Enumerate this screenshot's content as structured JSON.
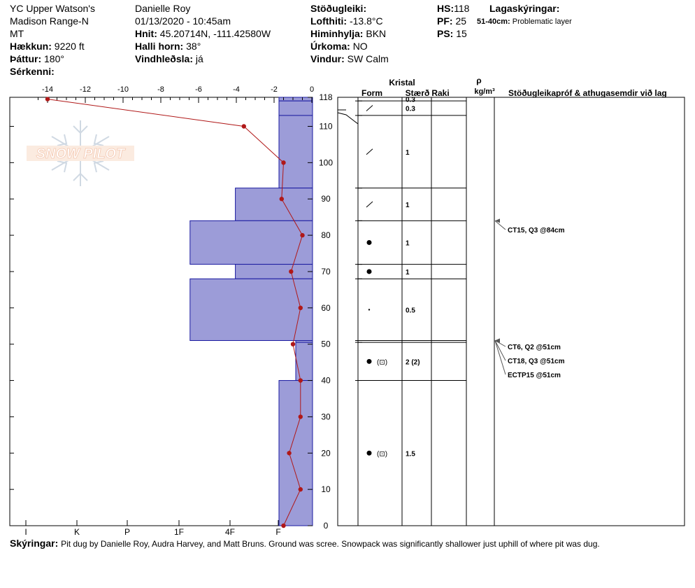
{
  "header": {
    "location_line1": "YC Upper Watson's",
    "location_line2": "Madison Range-N",
    "state": "MT",
    "elevation_label": "Hækkun:",
    "elevation_value": "9220 ft",
    "aspect_label": "Þáttur:",
    "aspect_value": "180°",
    "specifics_label": "Sérkenni:",
    "observer": "Danielle Roy",
    "datetime": "01/13/2020 - 10:45am",
    "coords_label": "Hnit:",
    "coords_value": "45.20714N, -111.42580W",
    "slope_label": "Halli horn:",
    "slope_value": "38°",
    "wind_loading_label": "Vindhleðsla:",
    "wind_loading_value": "já",
    "stability_label": "Stöðugleiki:",
    "air_temp_label": "Lofthiti:",
    "air_temp_value": "-13.8°C",
    "sky_label": "Himinhylja:",
    "sky_value": "BKN",
    "precip_label": "Úrkoma:",
    "precip_value": "NO",
    "wind_label": "Vindur:",
    "wind_value": "SW Calm",
    "hs_label": "HS:",
    "hs_value": "118",
    "pf_label": "PF:",
    "pf_value": "25",
    "ps_label": "PS:",
    "ps_value": "15",
    "layer_notes_label": "Lagaskýringar:",
    "layer_note_range": "51-40cm:",
    "layer_note_text": "Problematic layer"
  },
  "table_headers": {
    "crystal": "Kristal",
    "form": "Form",
    "size": "Stærð",
    "moisture": "Raki",
    "rho": "ρ",
    "density_unit": "kg/m³",
    "tests": "Stöðugleikapróf & athugasemdir við lag"
  },
  "watermark": "SNOW PILOT",
  "footer": {
    "label": "Skýringar:",
    "text": "Pit dug by Danielle Roy, Audra Harvey, and Matt Bruns.  Ground was scree.  Snowpack was significantly shallower just uphill of where pit was dug."
  },
  "colors": {
    "hardness_fill": "#9c9cd8",
    "hardness_stroke": "#1a1aa0",
    "temp_line": "#b01818",
    "watermark": "#e06020"
  },
  "chart_data": {
    "type": "snow_profile",
    "temperature_axis": {
      "ticks": [
        "-14",
        "-12",
        "-10",
        "-8",
        "-6",
        "-4",
        "-2",
        "0"
      ],
      "range": [
        -14.5,
        0
      ]
    },
    "hardness_axis": {
      "ticks": [
        "I",
        "K",
        "P",
        "1F",
        "4F",
        "F"
      ]
    },
    "height_axis": {
      "ticks": [
        "0",
        "10",
        "20",
        "30",
        "40",
        "50",
        "60",
        "70",
        "80",
        "90",
        "100",
        "110",
        "118"
      ],
      "range": [
        0,
        118
      ]
    },
    "temperature_profile": [
      {
        "h": 117.5,
        "t": -14.0
      },
      {
        "h": 110,
        "t": -3.6
      },
      {
        "h": 100,
        "t": -1.5
      },
      {
        "h": 90,
        "t": -1.6
      },
      {
        "h": 80,
        "t": -0.5
      },
      {
        "h": 70,
        "t": -1.1
      },
      {
        "h": 60,
        "t": -0.6
      },
      {
        "h": 50,
        "t": -1.0
      },
      {
        "h": 40,
        "t": -0.6
      },
      {
        "h": 30,
        "t": -0.6
      },
      {
        "h": 20,
        "t": -1.2
      },
      {
        "h": 10,
        "t": -0.6
      },
      {
        "h": 0,
        "t": -1.5
      }
    ],
    "layers": [
      {
        "top": 118,
        "bottom": 117,
        "hardness": "F",
        "hardness_index": 1.0,
        "form": "",
        "size": "0.3"
      },
      {
        "top": 117,
        "bottom": 113,
        "hardness": "F",
        "hardness_index": 1.0,
        "form": "/",
        "size": "0.3"
      },
      {
        "top": 113,
        "bottom": 93,
        "hardness": "F",
        "hardness_index": 1.0,
        "form": "/",
        "size": "1"
      },
      {
        "top": 93,
        "bottom": 84,
        "hardness": "4F",
        "hardness_index": 2.3,
        "form": "/",
        "size": "1"
      },
      {
        "top": 84,
        "bottom": 72,
        "hardness": "1F",
        "hardness_index": 3.65,
        "form": "●",
        "size": "1"
      },
      {
        "top": 72,
        "bottom": 68,
        "hardness": "4F",
        "hardness_index": 2.3,
        "form": "●",
        "size": "1"
      },
      {
        "top": 68,
        "bottom": 51,
        "hardness": "1F",
        "hardness_index": 3.65,
        "form": "·",
        "size": "0.5"
      },
      {
        "top": 51,
        "bottom": 50.5,
        "hardness": "F+",
        "hardness_index": 0.5,
        "form": "",
        "size": ""
      },
      {
        "top": 50.5,
        "bottom": 40,
        "hardness": "F+",
        "hardness_index": 0.5,
        "form": "● (⊡)",
        "size": "2 (2)"
      },
      {
        "top": 40,
        "bottom": 0,
        "hardness": "F",
        "hardness_index": 1.0,
        "form": "● (⊡)",
        "size": "1.5"
      }
    ],
    "stability_tests": [
      {
        "text": "CT15, Q3 @84cm",
        "depth": 84
      },
      {
        "text": "CT6, Q2 @51cm",
        "depth": 51
      },
      {
        "text": "CT18, Q3 @51cm",
        "depth": 51
      },
      {
        "text": "ECTP15 @51cm",
        "depth": 51
      }
    ]
  }
}
